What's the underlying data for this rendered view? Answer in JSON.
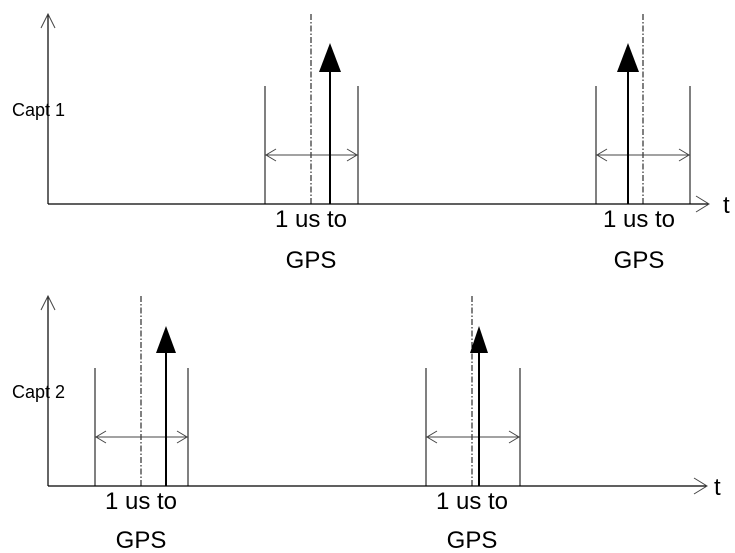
{
  "rows": [
    {
      "channel_label": "Capt 1",
      "axis_label": "t",
      "windows": [
        {
          "label_line1": "1 us to",
          "label_line2": "GPS"
        },
        {
          "label_line1": "1 us to",
          "label_line2": "GPS"
        }
      ]
    },
    {
      "channel_label": "Capt 2",
      "axis_label": "t",
      "windows": [
        {
          "label_line1": "1 us to",
          "label_line2": "GPS"
        },
        {
          "label_line1": "1 us to",
          "label_line2": "GPS"
        }
      ]
    }
  ]
}
